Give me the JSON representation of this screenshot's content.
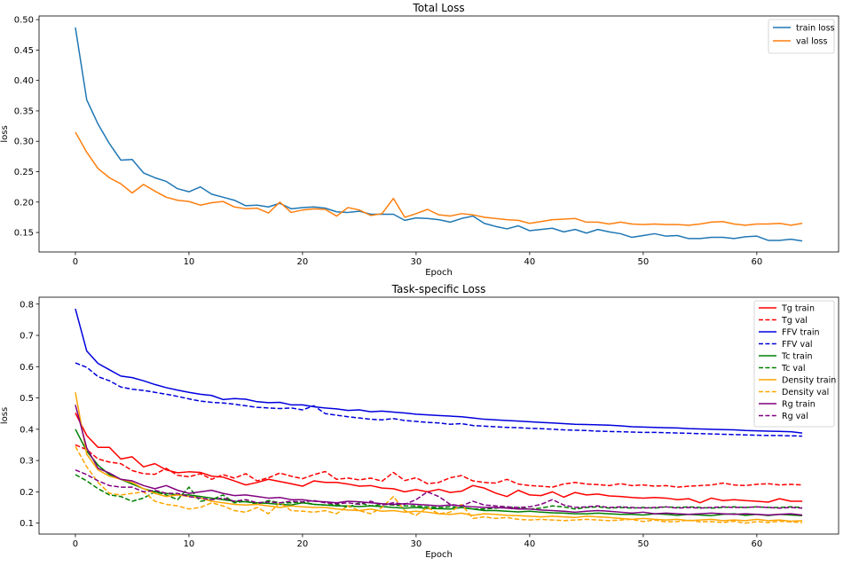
{
  "chart_data": [
    {
      "type": "line",
      "title": "Total Loss",
      "xlabel": "Epoch",
      "ylabel": "loss",
      "xlim": [
        -3.2,
        67.2
      ],
      "ylim": [
        0.118,
        0.506
      ],
      "xticks": [
        0,
        10,
        20,
        30,
        40,
        50,
        60
      ],
      "yticks": [
        0.15,
        0.2,
        0.25,
        0.3,
        0.35,
        0.4,
        0.45,
        0.5
      ],
      "ytick_labels": [
        "0.15",
        "0.20",
        "0.25",
        "0.30",
        "0.35",
        "0.40",
        "0.45",
        "0.50"
      ],
      "grid": false,
      "legend": "top-right",
      "series": [
        {
          "name": "train loss",
          "color": "#1f77b4",
          "style": "solid",
          "values": [
            0.487,
            0.368,
            0.328,
            0.296,
            0.269,
            0.27,
            0.248,
            0.24,
            0.234,
            0.222,
            0.217,
            0.225,
            0.213,
            0.208,
            0.203,
            0.194,
            0.195,
            0.192,
            0.198,
            0.189,
            0.191,
            0.192,
            0.19,
            0.184,
            0.183,
            0.185,
            0.18,
            0.18,
            0.18,
            0.17,
            0.174,
            0.173,
            0.171,
            0.167,
            0.173,
            0.177,
            0.165,
            0.16,
            0.156,
            0.161,
            0.153,
            0.155,
            0.157,
            0.151,
            0.155,
            0.149,
            0.155,
            0.151,
            0.148,
            0.142,
            0.145,
            0.148,
            0.144,
            0.145,
            0.14,
            0.14,
            0.142,
            0.142,
            0.14,
            0.143,
            0.144,
            0.137,
            0.137,
            0.139,
            0.136
          ]
        },
        {
          "name": "val loss",
          "color": "#ff7f0e",
          "style": "solid",
          "values": [
            0.315,
            0.282,
            0.255,
            0.24,
            0.23,
            0.215,
            0.229,
            0.218,
            0.208,
            0.203,
            0.201,
            0.195,
            0.199,
            0.201,
            0.192,
            0.189,
            0.19,
            0.182,
            0.2,
            0.183,
            0.187,
            0.189,
            0.188,
            0.177,
            0.191,
            0.187,
            0.178,
            0.181,
            0.206,
            0.175,
            0.181,
            0.188,
            0.179,
            0.177,
            0.181,
            0.179,
            0.175,
            0.173,
            0.171,
            0.17,
            0.165,
            0.168,
            0.171,
            0.172,
            0.173,
            0.167,
            0.167,
            0.164,
            0.167,
            0.164,
            0.163,
            0.164,
            0.163,
            0.163,
            0.162,
            0.164,
            0.167,
            0.168,
            0.164,
            0.162,
            0.164,
            0.164,
            0.165,
            0.162,
            0.165
          ]
        }
      ]
    },
    {
      "type": "line",
      "title": "Task-specific Loss",
      "xlabel": "Epoch",
      "ylabel": "loss",
      "xlim": [
        -3.2,
        67.2
      ],
      "ylim": [
        0.065,
        0.822
      ],
      "xticks": [
        0,
        10,
        20,
        30,
        40,
        50,
        60
      ],
      "yticks": [
        0.1,
        0.2,
        0.3,
        0.4,
        0.5,
        0.6,
        0.7,
        0.8
      ],
      "ytick_labels": [
        "0.1",
        "0.2",
        "0.3",
        "0.4",
        "0.5",
        "0.6",
        "0.7",
        "0.8"
      ],
      "grid": false,
      "legend": "top-right",
      "series": [
        {
          "name": "Tg train",
          "color": "#ff0000",
          "style": "solid",
          "values": [
            0.452,
            0.38,
            0.342,
            0.342,
            0.305,
            0.312,
            0.28,
            0.29,
            0.27,
            0.261,
            0.264,
            0.262,
            0.25,
            0.247,
            0.235,
            0.222,
            0.23,
            0.24,
            0.233,
            0.226,
            0.218,
            0.235,
            0.23,
            0.23,
            0.225,
            0.218,
            0.22,
            0.212,
            0.21,
            0.2,
            0.207,
            0.2,
            0.208,
            0.198,
            0.202,
            0.22,
            0.212,
            0.196,
            0.185,
            0.205,
            0.19,
            0.188,
            0.2,
            0.183,
            0.198,
            0.19,
            0.193,
            0.187,
            0.185,
            0.182,
            0.18,
            0.182,
            0.18,
            0.175,
            0.178,
            0.165,
            0.18,
            0.172,
            0.175,
            0.172,
            0.17,
            0.167,
            0.178,
            0.17,
            0.17
          ]
        },
        {
          "name": "Tg val",
          "color": "#ff0000",
          "style": "dashed",
          "values": [
            0.35,
            0.335,
            0.305,
            0.295,
            0.29,
            0.268,
            0.258,
            0.256,
            0.275,
            0.253,
            0.248,
            0.258,
            0.24,
            0.255,
            0.244,
            0.258,
            0.235,
            0.245,
            0.26,
            0.25,
            0.242,
            0.255,
            0.265,
            0.24,
            0.244,
            0.238,
            0.244,
            0.234,
            0.262,
            0.236,
            0.245,
            0.226,
            0.23,
            0.245,
            0.252,
            0.235,
            0.23,
            0.228,
            0.24,
            0.225,
            0.22,
            0.218,
            0.215,
            0.225,
            0.23,
            0.225,
            0.223,
            0.22,
            0.226,
            0.22,
            0.222,
            0.218,
            0.22,
            0.215,
            0.218,
            0.22,
            0.222,
            0.228,
            0.222,
            0.22,
            0.224,
            0.226,
            0.222,
            0.224,
            0.222
          ]
        },
        {
          "name": "FFV train",
          "color": "#0000dd",
          "style": "solid",
          "values": [
            0.785,
            0.65,
            0.61,
            0.59,
            0.57,
            0.565,
            0.555,
            0.543,
            0.533,
            0.525,
            0.518,
            0.512,
            0.508,
            0.495,
            0.498,
            0.496,
            0.488,
            0.485,
            0.486,
            0.478,
            0.478,
            0.472,
            0.468,
            0.465,
            0.46,
            0.462,
            0.456,
            0.458,
            0.455,
            0.452,
            0.448,
            0.446,
            0.444,
            0.442,
            0.44,
            0.436,
            0.432,
            0.43,
            0.428,
            0.426,
            0.424,
            0.422,
            0.42,
            0.418,
            0.416,
            0.415,
            0.414,
            0.413,
            0.411,
            0.408,
            0.407,
            0.406,
            0.405,
            0.404,
            0.402,
            0.401,
            0.4,
            0.399,
            0.398,
            0.396,
            0.395,
            0.394,
            0.393,
            0.392,
            0.388
          ]
        },
        {
          "name": "FFV val",
          "color": "#0000dd",
          "style": "dashed",
          "values": [
            0.612,
            0.598,
            0.568,
            0.555,
            0.535,
            0.528,
            0.524,
            0.518,
            0.512,
            0.505,
            0.497,
            0.49,
            0.486,
            0.484,
            0.48,
            0.475,
            0.47,
            0.468,
            0.466,
            0.468,
            0.462,
            0.475,
            0.45,
            0.445,
            0.44,
            0.436,
            0.432,
            0.43,
            0.434,
            0.428,
            0.425,
            0.422,
            0.42,
            0.416,
            0.418,
            0.412,
            0.41,
            0.408,
            0.406,
            0.405,
            0.403,
            0.402,
            0.4,
            0.398,
            0.397,
            0.396,
            0.394,
            0.393,
            0.392,
            0.391,
            0.39,
            0.39,
            0.389,
            0.388,
            0.387,
            0.386,
            0.385,
            0.384,
            0.383,
            0.382,
            0.381,
            0.38,
            0.38,
            0.379,
            0.378
          ]
        },
        {
          "name": "Tc train",
          "color": "#008000",
          "style": "solid",
          "values": [
            0.4,
            0.33,
            0.285,
            0.255,
            0.24,
            0.225,
            0.21,
            0.2,
            0.195,
            0.19,
            0.19,
            0.185,
            0.18,
            0.175,
            0.17,
            0.168,
            0.165,
            0.163,
            0.16,
            0.158,
            0.165,
            0.16,
            0.158,
            0.155,
            0.155,
            0.153,
            0.155,
            0.153,
            0.15,
            0.148,
            0.15,
            0.147,
            0.146,
            0.145,
            0.15,
            0.145,
            0.14,
            0.14,
            0.138,
            0.136,
            0.138,
            0.135,
            0.133,
            0.132,
            0.13,
            0.13,
            0.132,
            0.13,
            0.128,
            0.128,
            0.126,
            0.13,
            0.128,
            0.125,
            0.128,
            0.126,
            0.124,
            0.128,
            0.13,
            0.125,
            0.128,
            0.124,
            0.128,
            0.126,
            0.124
          ]
        },
        {
          "name": "Tc val",
          "color": "#008000",
          "style": "dashed",
          "values": [
            0.255,
            0.235,
            0.21,
            0.19,
            0.185,
            0.17,
            0.18,
            0.2,
            0.19,
            0.175,
            0.215,
            0.17,
            0.175,
            0.19,
            0.165,
            0.17,
            0.16,
            0.172,
            0.165,
            0.165,
            0.168,
            0.16,
            0.158,
            0.16,
            0.15,
            0.165,
            0.155,
            0.16,
            0.158,
            0.155,
            0.155,
            0.152,
            0.15,
            0.152,
            0.15,
            0.145,
            0.145,
            0.148,
            0.15,
            0.15,
            0.145,
            0.148,
            0.155,
            0.152,
            0.145,
            0.15,
            0.152,
            0.148,
            0.15,
            0.148,
            0.15,
            0.148,
            0.152,
            0.15,
            0.152,
            0.15,
            0.148,
            0.15,
            0.152,
            0.15,
            0.152,
            0.15,
            0.15,
            0.152,
            0.15
          ]
        },
        {
          "name": "Density train",
          "color": "#ffa500",
          "style": "solid",
          "values": [
            0.518,
            0.32,
            0.27,
            0.25,
            0.24,
            0.23,
            0.21,
            0.195,
            0.185,
            0.19,
            0.185,
            0.18,
            0.17,
            0.165,
            0.16,
            0.158,
            0.16,
            0.155,
            0.15,
            0.155,
            0.152,
            0.15,
            0.15,
            0.145,
            0.142,
            0.14,
            0.145,
            0.138,
            0.14,
            0.135,
            0.138,
            0.135,
            0.13,
            0.128,
            0.132,
            0.125,
            0.13,
            0.128,
            0.125,
            0.124,
            0.122,
            0.12,
            0.122,
            0.12,
            0.118,
            0.122,
            0.12,
            0.118,
            0.115,
            0.112,
            0.115,
            0.112,
            0.11,
            0.112,
            0.108,
            0.11,
            0.112,
            0.108,
            0.11,
            0.108,
            0.112,
            0.108,
            0.11,
            0.106,
            0.108
          ]
        },
        {
          "name": "Density val",
          "color": "#ffa500",
          "style": "dashed",
          "values": [
            0.345,
            0.28,
            0.23,
            0.195,
            0.19,
            0.195,
            0.2,
            0.17,
            0.16,
            0.155,
            0.145,
            0.15,
            0.165,
            0.155,
            0.14,
            0.135,
            0.15,
            0.13,
            0.165,
            0.14,
            0.138,
            0.135,
            0.14,
            0.13,
            0.155,
            0.14,
            0.13,
            0.15,
            0.185,
            0.14,
            0.125,
            0.15,
            0.13,
            0.135,
            0.16,
            0.115,
            0.12,
            0.115,
            0.118,
            0.112,
            0.11,
            0.112,
            0.11,
            0.108,
            0.11,
            0.112,
            0.11,
            0.108,
            0.11,
            0.112,
            0.105,
            0.11,
            0.104,
            0.105,
            0.11,
            0.104,
            0.105,
            0.102,
            0.106,
            0.1,
            0.105,
            0.102,
            0.106,
            0.104,
            0.102
          ]
        },
        {
          "name": "Rg train",
          "color": "#800080",
          "style": "solid",
          "values": [
            0.478,
            0.34,
            0.275,
            0.26,
            0.24,
            0.235,
            0.22,
            0.21,
            0.22,
            0.205,
            0.195,
            0.2,
            0.205,
            0.195,
            0.188,
            0.19,
            0.185,
            0.18,
            0.182,
            0.175,
            0.175,
            0.17,
            0.168,
            0.165,
            0.17,
            0.168,
            0.165,
            0.162,
            0.16,
            0.162,
            0.16,
            0.158,
            0.155,
            0.158,
            0.155,
            0.152,
            0.15,
            0.15,
            0.148,
            0.145,
            0.145,
            0.142,
            0.14,
            0.138,
            0.135,
            0.138,
            0.14,
            0.138,
            0.135,
            0.132,
            0.135,
            0.13,
            0.132,
            0.13,
            0.128,
            0.13,
            0.132,
            0.13,
            0.128,
            0.13,
            0.128,
            0.126,
            0.128,
            0.13,
            0.126
          ]
        },
        {
          "name": "Rg val",
          "color": "#800080",
          "style": "dashed",
          "values": [
            0.27,
            0.255,
            0.235,
            0.22,
            0.215,
            0.215,
            0.2,
            0.205,
            0.195,
            0.195,
            0.185,
            0.18,
            0.175,
            0.18,
            0.17,
            0.175,
            0.165,
            0.168,
            0.165,
            0.17,
            0.168,
            0.172,
            0.165,
            0.162,
            0.165,
            0.16,
            0.17,
            0.158,
            0.165,
            0.16,
            0.175,
            0.2,
            0.185,
            0.16,
            0.155,
            0.17,
            0.158,
            0.155,
            0.152,
            0.15,
            0.152,
            0.16,
            0.175,
            0.158,
            0.15,
            0.152,
            0.155,
            0.15,
            0.152,
            0.15,
            0.148,
            0.15,
            0.152,
            0.148,
            0.15,
            0.148,
            0.15,
            0.152,
            0.15,
            0.15,
            0.152,
            0.15,
            0.148,
            0.15,
            0.148
          ]
        }
      ]
    }
  ]
}
